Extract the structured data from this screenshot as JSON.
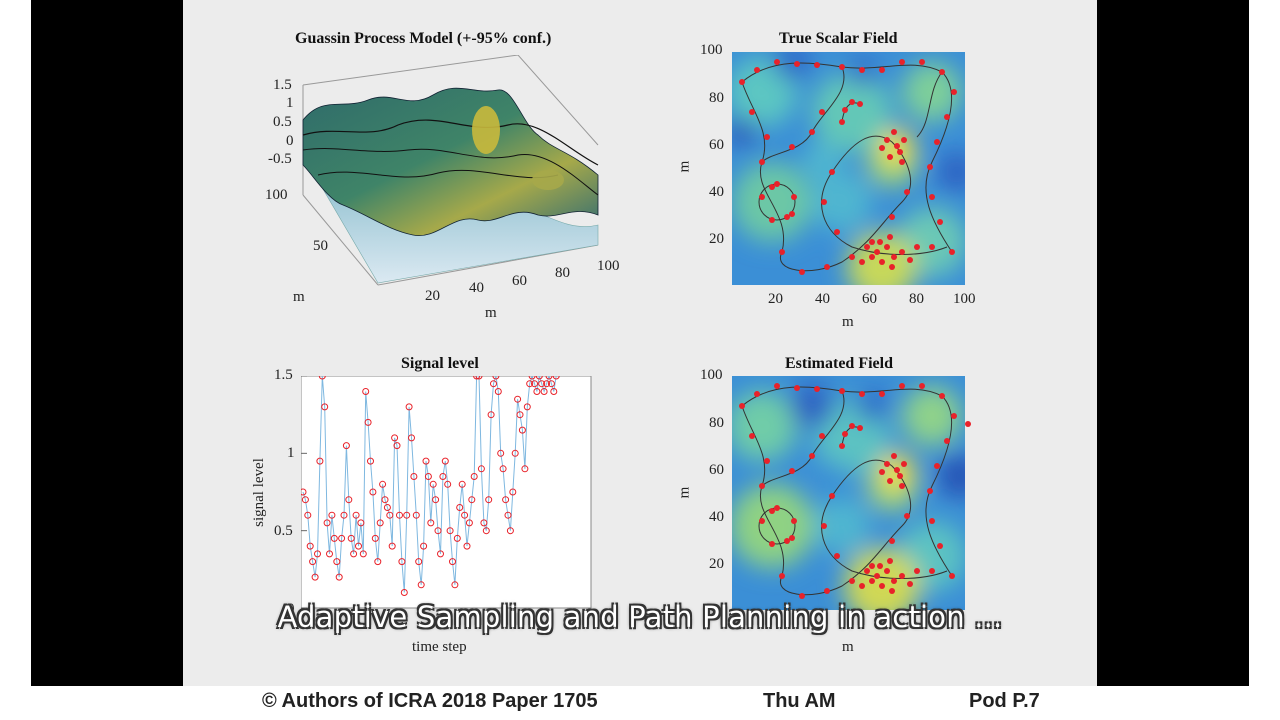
{
  "colors": {
    "page_bg": "#ffffff",
    "letterbox": "#000000",
    "slide_bg": "#ececec",
    "path_red": "#e8222a",
    "signal_line": "#7fb8e0"
  },
  "plots": {
    "gp": {
      "title": "Guassin Process Model (+-95% conf.)",
      "z_ticks": [
        "1.5",
        "1",
        "0.5",
        "0",
        "-0.5"
      ],
      "y_ticks": [
        "100",
        "50"
      ],
      "x_ticks": [
        "20",
        "40",
        "60",
        "80",
        "100"
      ],
      "y_label": "m",
      "x_label": "m"
    },
    "true_field": {
      "title": "True Scalar Field",
      "y_ticks": [
        "100",
        "80",
        "60",
        "40",
        "20"
      ],
      "x_ticks": [
        "20",
        "40",
        "60",
        "80",
        "100"
      ],
      "y_label": "m",
      "x_label": "m"
    },
    "signal": {
      "title": "Signal level",
      "y_ticks": [
        "1.5",
        "1",
        "0.5",
        "0"
      ],
      "y_label": "signal level",
      "x_label": "time step"
    },
    "est_field": {
      "title": "Estimated Field",
      "y_ticks": [
        "100",
        "80",
        "60",
        "40",
        "20"
      ],
      "y_label": "m",
      "x_label": "m"
    }
  },
  "caption": "Adaptive Sampling and Path Planning in action ...",
  "footer": {
    "copyright": "© Authors of ICRA 2018 Paper 1705",
    "session": "Thu AM",
    "pod": "Pod P.7"
  },
  "chart_data": [
    {
      "type": "line",
      "title": "Signal level",
      "ylabel": "signal level",
      "xlabel": "time step",
      "ylim": [
        0,
        1.5
      ],
      "y_ticks": [
        0,
        0.5,
        1,
        1.5
      ],
      "series": [
        {
          "values": [
            0.75,
            0.7,
            0.6,
            0.4,
            0.3,
            0.2,
            0.35,
            0.95,
            1.5,
            1.3,
            0.55,
            0.35,
            0.6,
            0.45,
            0.3,
            0.2,
            0.45,
            0.6,
            1.05,
            0.7,
            0.45,
            0.35,
            0.6,
            0.4,
            0.55,
            0.35,
            1.4,
            1.2,
            0.95,
            0.75,
            0.45,
            0.3,
            0.55,
            0.8,
            0.7,
            0.65,
            0.6,
            0.4,
            1.1,
            1.05,
            0.6,
            0.3,
            0.1,
            0.6,
            1.3,
            1.1,
            0.85,
            0.6,
            0.3,
            0.15,
            0.4,
            0.95,
            0.85,
            0.55,
            0.8,
            0.7,
            0.5,
            0.35,
            0.85,
            0.95,
            0.8,
            0.5,
            0.3,
            0.15,
            0.45,
            0.65,
            0.8,
            0.6,
            0.4,
            0.55,
            0.7,
            0.85,
            1.5,
            1.5,
            0.9,
            0.55,
            0.5,
            0.7,
            1.25,
            1.45,
            1.5,
            1.4,
            1.0,
            0.9,
            0.7,
            0.6,
            0.5,
            0.75,
            1.0,
            1.35,
            1.25,
            1.15,
            0.9,
            1.3,
            1.45,
            1.5,
            1.45,
            1.4,
            1.5,
            1.45,
            1.4,
            1.45,
            1.5,
            1.45,
            1.4,
            1.5
          ]
        }
      ]
    }
  ]
}
